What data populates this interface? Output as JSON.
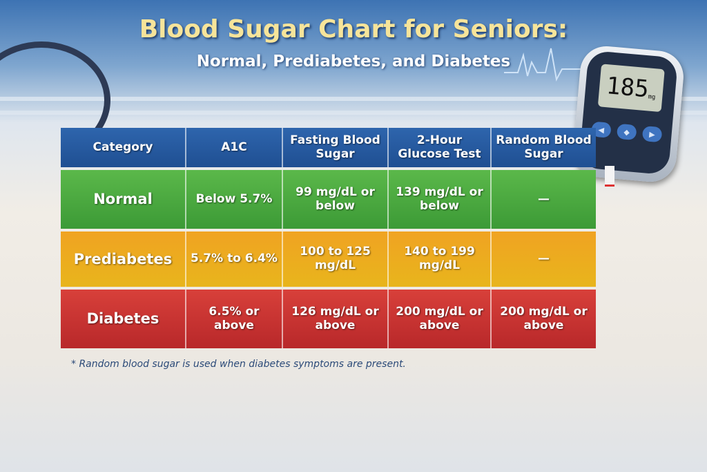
{
  "title": "Blood Sugar Chart for Seniors:",
  "subtitle": "Normal, Prediabetes, and Diabetes",
  "footnote": "* Random blood sugar is used when diabetes symptoms are present.",
  "meter": {
    "reading": "185",
    "unit": "mg",
    "icons": [
      "left-arrow-icon",
      "center-button-icon",
      "right-arrow-icon"
    ]
  },
  "colors": {
    "header": "#2459a0",
    "normal": "#4caa3f",
    "prediabetes": "#eeab20",
    "diabetes": "#c8332f"
  },
  "chart_data": {
    "type": "table",
    "columns": [
      "Category",
      "A1C",
      "Fasting Blood Sugar",
      "2-Hour Glucose Test",
      "Random Blood Sugar"
    ],
    "rows": [
      [
        "Normal",
        "Below 5.7%",
        "99 mg/dL or below",
        "139 mg/dL or below",
        "—"
      ],
      [
        "Prediabetes",
        "5.7% to 6.4%",
        "100 to 125 mg/dL",
        "140 to 199 mg/dL",
        "—"
      ],
      [
        "Diabetes",
        "6.5% or above",
        "126 mg/dL or above",
        "200 mg/dL or above",
        "200 mg/dL or above"
      ]
    ]
  }
}
